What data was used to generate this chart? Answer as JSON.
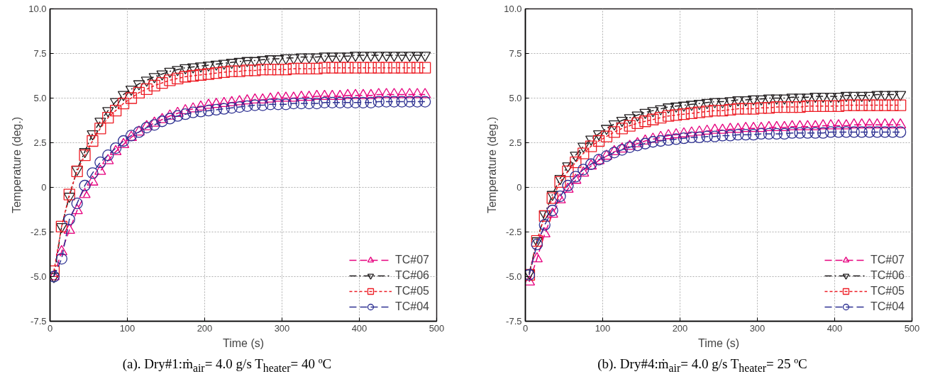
{
  "chart_data": [
    {
      "type": "line",
      "title": "(a). Dry#1:ṁ$_{air}$= 4.0 g/s T$_{heater}$= 40 ºC",
      "xlabel": "Time (s)",
      "ylabel": "Temperature (deg.)",
      "x": [
        5,
        15,
        25,
        35,
        45,
        55,
        65,
        75,
        85,
        95,
        105,
        115,
        125,
        135,
        145,
        155,
        165,
        175,
        185,
        195,
        205,
        215,
        225,
        235,
        245,
        255,
        265,
        275,
        285,
        295,
        305,
        315,
        325,
        335,
        345,
        355,
        365,
        375,
        385,
        395,
        405,
        415,
        425,
        435,
        445,
        455,
        465,
        475,
        485
      ],
      "xlim": [
        0,
        500
      ],
      "xticks": [
        0,
        100,
        200,
        300,
        400,
        500
      ],
      "ylim": [
        -7.5,
        10
      ],
      "yticks": [
        -7.5,
        {
          "value": -5,
          "label": "-5.0"
        },
        -2.5,
        0,
        2.5,
        {
          "value": 5,
          "label": "5.0"
        },
        7.5,
        {
          "value": 10,
          "label": "10.0"
        }
      ],
      "grid": true,
      "legend": "bottom right",
      "series": [
        {
          "name": "TC#07",
          "color": "#e6007e",
          "marker": "triangle",
          "line_style": "dashed",
          "values": [
            -5.0,
            -3.6,
            -2.4,
            -1.3,
            -0.4,
            0.3,
            0.9,
            1.5,
            2.0,
            2.4,
            2.8,
            3.1,
            3.4,
            3.6,
            3.8,
            4.0,
            4.15,
            4.3,
            4.4,
            4.5,
            4.6,
            4.65,
            4.7,
            4.75,
            4.8,
            4.85,
            4.9,
            4.9,
            4.95,
            5.0,
            5.0,
            5.0,
            5.05,
            5.05,
            5.1,
            5.1,
            5.1,
            5.1,
            5.15,
            5.15,
            5.15,
            5.15,
            5.2,
            5.2,
            5.2,
            5.2,
            5.2,
            5.2,
            5.2
          ]
        },
        {
          "name": "TC#06",
          "color": "#231f20",
          "marker": "triangle_down",
          "line_style": "dashdot",
          "values": [
            -5.0,
            -2.2,
            -0.5,
            1.0,
            2.0,
            3.0,
            3.7,
            4.3,
            4.8,
            5.2,
            5.5,
            5.8,
            6.0,
            6.2,
            6.35,
            6.5,
            6.6,
            6.7,
            6.75,
            6.8,
            6.85,
            6.9,
            6.95,
            7.0,
            7.05,
            7.1,
            7.1,
            7.15,
            7.2,
            7.2,
            7.25,
            7.25,
            7.3,
            7.3,
            7.3,
            7.35,
            7.35,
            7.35,
            7.35,
            7.4,
            7.4,
            7.4,
            7.4,
            7.4,
            7.4,
            7.4,
            7.4,
            7.4,
            7.4
          ]
        },
        {
          "name": "TC#05",
          "color": "#ed1c24",
          "marker": "square",
          "line_style": "dotted",
          "values": [
            -4.7,
            -2.2,
            -0.4,
            0.9,
            1.8,
            2.6,
            3.3,
            3.9,
            4.3,
            4.7,
            5.0,
            5.3,
            5.5,
            5.7,
            5.85,
            6.0,
            6.1,
            6.2,
            6.25,
            6.3,
            6.35,
            6.4,
            6.45,
            6.5,
            6.5,
            6.55,
            6.55,
            6.6,
            6.6,
            6.6,
            6.6,
            6.65,
            6.65,
            6.65,
            6.65,
            6.7,
            6.7,
            6.7,
            6.7,
            6.7,
            6.7,
            6.7,
            6.7,
            6.7,
            6.7,
            6.7,
            6.7,
            6.7,
            6.7
          ]
        },
        {
          "name": "TC#04",
          "color": "#2e3192",
          "marker": "circle",
          "line_style": "dashed",
          "values": [
            -5.0,
            -4.0,
            -1.8,
            -0.9,
            0.1,
            0.8,
            1.4,
            1.8,
            2.2,
            2.6,
            2.9,
            3.1,
            3.35,
            3.5,
            3.7,
            3.85,
            4.0,
            4.1,
            4.2,
            4.25,
            4.3,
            4.35,
            4.4,
            4.45,
            4.5,
            4.55,
            4.6,
            4.6,
            4.65,
            4.65,
            4.65,
            4.7,
            4.7,
            4.7,
            4.7,
            4.75,
            4.75,
            4.75,
            4.75,
            4.75,
            4.75,
            4.75,
            4.8,
            4.8,
            4.8,
            4.8,
            4.8,
            4.8,
            4.8
          ]
        }
      ]
    },
    {
      "type": "line",
      "title": "(b). Dry#4:ṁ$_{air}$= 4.0 g/s T$_{heater}$= 25 ºC",
      "xlabel": "Time (s)",
      "ylabel": "Temperature (deg.)",
      "x": [
        5,
        15,
        25,
        35,
        45,
        55,
        65,
        75,
        85,
        95,
        105,
        115,
        125,
        135,
        145,
        155,
        165,
        175,
        185,
        195,
        205,
        215,
        225,
        235,
        245,
        255,
        265,
        275,
        285,
        295,
        305,
        315,
        325,
        335,
        345,
        355,
        365,
        375,
        385,
        395,
        405,
        415,
        425,
        435,
        445,
        455,
        465,
        475,
        485
      ],
      "xlim": [
        0,
        500
      ],
      "xticks": [
        0,
        100,
        200,
        300,
        400,
        500
      ],
      "ylim": [
        -7.5,
        10
      ],
      "yticks": [
        -7.5,
        {
          "value": -5,
          "label": "-5.0"
        },
        -2.5,
        0,
        2.5,
        {
          "value": 5,
          "label": "5.0"
        },
        7.5,
        {
          "value": 10,
          "label": "10.0"
        }
      ],
      "grid": true,
      "legend": "bottom right",
      "series": [
        {
          "name": "TC#07",
          "color": "#e6007e",
          "marker": "triangle",
          "line_style": "dashed",
          "values": [
            -5.3,
            -4.0,
            -2.6,
            -1.5,
            -0.7,
            -0.1,
            0.4,
            0.8,
            1.2,
            1.5,
            1.75,
            2.0,
            2.15,
            2.3,
            2.45,
            2.6,
            2.7,
            2.8,
            2.9,
            2.95,
            3.0,
            3.05,
            3.1,
            3.15,
            3.2,
            3.2,
            3.25,
            3.25,
            3.3,
            3.3,
            3.3,
            3.35,
            3.35,
            3.35,
            3.4,
            3.4,
            3.4,
            3.4,
            3.45,
            3.45,
            3.45,
            3.45,
            3.5,
            3.5,
            3.5,
            3.5,
            3.5,
            3.5,
            3.5
          ]
        },
        {
          "name": "TC#06",
          "color": "#231f20",
          "marker": "triangle_down",
          "line_style": "dashdot",
          "values": [
            -4.8,
            -3.0,
            -1.5,
            -0.4,
            0.5,
            1.2,
            1.8,
            2.3,
            2.7,
            3.0,
            3.3,
            3.55,
            3.75,
            3.9,
            4.05,
            4.2,
            4.3,
            4.4,
            4.5,
            4.55,
            4.6,
            4.65,
            4.7,
            4.75,
            4.8,
            4.8,
            4.85,
            4.9,
            4.9,
            4.95,
            4.95,
            5.0,
            5.0,
            5.0,
            5.05,
            5.05,
            5.05,
            5.1,
            5.1,
            5.1,
            5.1,
            5.15,
            5.15,
            5.15,
            5.15,
            5.2,
            5.2,
            5.2,
            5.2
          ]
        },
        {
          "name": "TC#05",
          "color": "#ed1c24",
          "marker": "square",
          "line_style": "dotted",
          "values": [
            -4.9,
            -3.0,
            -1.6,
            -0.6,
            0.3,
            0.9,
            1.4,
            1.9,
            2.3,
            2.6,
            2.85,
            3.1,
            3.3,
            3.45,
            3.6,
            3.7,
            3.8,
            3.9,
            4.0,
            4.05,
            4.1,
            4.15,
            4.2,
            4.25,
            4.3,
            4.3,
            4.35,
            4.4,
            4.4,
            4.4,
            4.45,
            4.45,
            4.5,
            4.5,
            4.5,
            4.5,
            4.55,
            4.55,
            4.55,
            4.55,
            4.55,
            4.6,
            4.6,
            4.6,
            4.6,
            4.6,
            4.6,
            4.6,
            4.6
          ]
        },
        {
          "name": "TC#04",
          "color": "#2e3192",
          "marker": "circle",
          "line_style": "dashed",
          "values": [
            -4.9,
            -3.2,
            -2.1,
            -1.3,
            -0.5,
            0.1,
            0.6,
            1.0,
            1.3,
            1.55,
            1.75,
            1.95,
            2.1,
            2.25,
            2.35,
            2.45,
            2.55,
            2.6,
            2.65,
            2.7,
            2.75,
            2.8,
            2.8,
            2.85,
            2.85,
            2.9,
            2.9,
            2.95,
            2.95,
            2.95,
            3.0,
            3.0,
            3.0,
            3.0,
            3.05,
            3.05,
            3.05,
            3.05,
            3.05,
            3.1,
            3.1,
            3.1,
            3.1,
            3.1,
            3.1,
            3.1,
            3.1,
            3.1,
            3.1
          ]
        }
      ]
    }
  ]
}
